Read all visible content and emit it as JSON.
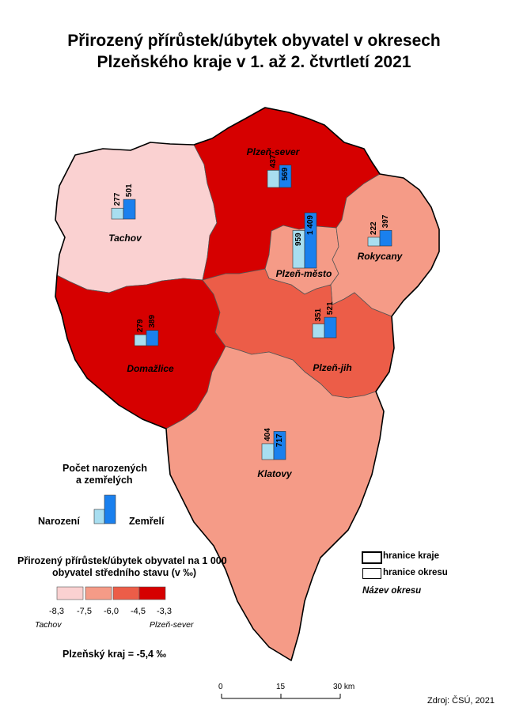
{
  "title": {
    "line1": "Přirozený přírůstek/úbytek obyvatel v okresech",
    "line2": "Plzeňského kraje v 1. až 2. čtvrtletí 2021"
  },
  "colors": {
    "class1": "#fad1d1",
    "class2": "#f59b87",
    "class3": "#ec5d48",
    "class4": "#d60000",
    "births": "#a8def0",
    "deaths": "#1a80ee"
  },
  "districts": [
    {
      "name": "Tachov",
      "births": "277",
      "deaths": "501",
      "births_value": 277,
      "deaths_value": 501,
      "class": 1
    },
    {
      "name": "Plzeň-sever",
      "births": "437",
      "deaths": "569",
      "births_value": 437,
      "deaths_value": 569,
      "class": 4
    },
    {
      "name": "Plzeň-město",
      "births": "959",
      "deaths": "1 409",
      "births_value": 959,
      "deaths_value": 1409,
      "class": 2
    },
    {
      "name": "Rokycany",
      "births": "222",
      "deaths": "397",
      "births_value": 222,
      "deaths_value": 397,
      "class": 2
    },
    {
      "name": "Domažlice",
      "births": "279",
      "deaths": "389",
      "births_value": 279,
      "deaths_value": 389,
      "class": 4
    },
    {
      "name": "Plzeň-jih",
      "births": "351",
      "deaths": "521",
      "births_value": 351,
      "deaths_value": 521,
      "class": 3
    },
    {
      "name": "Klatovy",
      "births": "404",
      "deaths": "717",
      "births_value": 404,
      "deaths_value": 717,
      "class": 2
    }
  ],
  "legend_bars": {
    "title_line1": "Počet narozených",
    "title_line2": "a zemřelých",
    "births_label": "Narození",
    "deaths_label": "Zemřelí"
  },
  "legend_classes": {
    "title_line1": "Přirozený přírůstek/úbytek obyvatel na 1 000",
    "title_line2": "obyvatel středního stavu (v ‰)",
    "breaks": [
      "-8,3",
      "-7,5",
      "-6,0",
      "-4,5",
      "-3,3"
    ],
    "min_district": "Tachov",
    "max_district": "Plzeň-sever"
  },
  "legend_borders": {
    "region": "hranice kraje",
    "district": "hranice okresu",
    "district_name": "Název okresu"
  },
  "region_total": "Plzeňský kraj = -5,4 ‰",
  "scale": {
    "ticks": [
      "0",
      "15",
      "30 km"
    ]
  },
  "source": "Zdroj: ČSÚ, 2021"
}
